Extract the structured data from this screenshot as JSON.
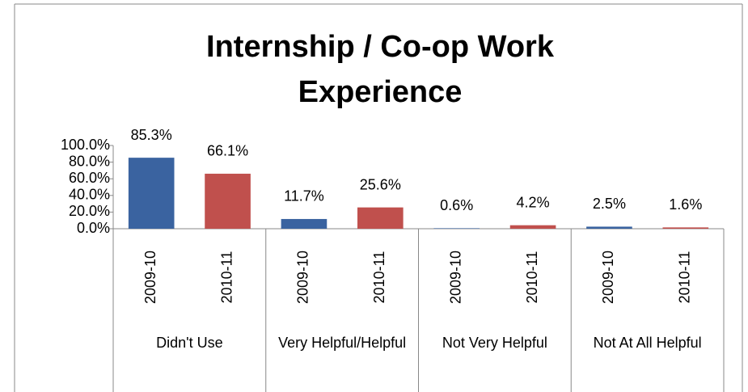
{
  "chart_data": {
    "type": "bar",
    "title": "Internship / Co-op Work Experience",
    "categories": [
      "Didn't Use",
      "Very Helpful/Helpful",
      "Not Very Helpful",
      "Not At All Helpful"
    ],
    "series": [
      {
        "name": "2009-10",
        "color": "#3a63a0",
        "values": [
          85.3,
          11.7,
          0.6,
          2.5
        ],
        "value_labels": [
          "85.3%",
          "11.7%",
          "0.6%",
          "2.5%"
        ]
      },
      {
        "name": "2010-11",
        "color": "#c0504d",
        "values": [
          66.1,
          25.6,
          4.2,
          1.6
        ],
        "value_labels": [
          "66.1%",
          "25.6%",
          "4.2%",
          "1.6%"
        ]
      }
    ],
    "ylim": [
      0,
      100
    ],
    "yticks": [
      {
        "value": 0,
        "label": "0.0%"
      },
      {
        "value": 20,
        "label": "20.0%"
      },
      {
        "value": 40,
        "label": "40.0%"
      },
      {
        "value": 60,
        "label": "60.0%"
      },
      {
        "value": 80,
        "label": "80.0%"
      },
      {
        "value": 100,
        "label": "100.0%"
      }
    ],
    "grid": false
  }
}
